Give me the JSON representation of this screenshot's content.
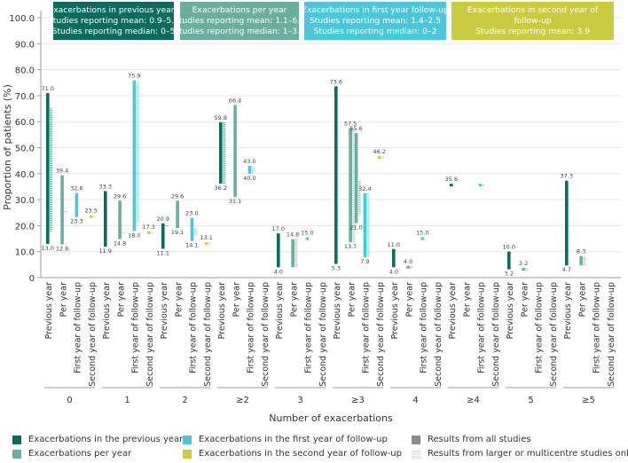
{
  "chart_data": {
    "type": "range",
    "ylabel": "Proportion of patients (%)",
    "xlabel": "Number of exacerbations",
    "ylim": [
      0,
      100
    ],
    "yticks": [
      "0",
      "10.0",
      "20.0",
      "30.0",
      "40.0",
      "50.0",
      "60.0",
      "70.0",
      "80.0",
      "90.0",
      "100.0"
    ],
    "periods": [
      "Previous year",
      "Per year",
      "First year of follow-up",
      "Second year of follow-up"
    ],
    "period_colors": [
      "#0b6b5c",
      "#6aaf9c",
      "#4cc6d8",
      "#c9cc40"
    ],
    "groups": [
      {
        "label": "0",
        "ranges": [
          {
            "period": 0,
            "min": 13.0,
            "max": 71.0,
            "min_label": "13.0",
            "max_label": "71.0",
            "large_from": 17.8,
            "large_to": 65.1
          },
          {
            "period": 1,
            "min": 12.8,
            "max": 39.4,
            "min_label": "12.8",
            "max_label": "39.4",
            "large_from": 25.3,
            "large_to": 25.3
          },
          {
            "period": 2,
            "min": 23.3,
            "max": 32.6,
            "min_label": "23.3",
            "max_label": "32.6",
            "large_from": null,
            "large_to": null
          },
          {
            "period": 3,
            "min": 23.5,
            "max": 23.5,
            "min_label": "",
            "max_label": "23.5",
            "large_from": 23.5,
            "large_to": 23.5
          }
        ]
      },
      {
        "label": "1",
        "ranges": [
          {
            "period": 0,
            "min": 11.9,
            "max": 33.3,
            "min_label": "11.9",
            "max_label": "33.3",
            "large_from": null,
            "large_to": null
          },
          {
            "period": 1,
            "min": 14.8,
            "max": 29.6,
            "min_label": "14.8",
            "max_label": "29.6",
            "large_from": 17.4,
            "large_to": 17.4
          },
          {
            "period": 2,
            "min": 18.0,
            "max": 75.9,
            "min_label": "18.0",
            "max_label": "75.9",
            "large_from": 20.9,
            "large_to": 75.9
          },
          {
            "period": 3,
            "min": 17.3,
            "max": 17.3,
            "min_label": "",
            "max_label": "17.3",
            "large_from": 17.3,
            "large_to": 17.3
          }
        ]
      },
      {
        "label": "2",
        "ranges": [
          {
            "period": 0,
            "min": 11.1,
            "max": 20.9,
            "min_label": "11.1",
            "max_label": "20.9",
            "large_from": 20.0,
            "large_to": 20.0
          },
          {
            "period": 1,
            "min": 19.1,
            "max": 29.6,
            "min_label": "19.1",
            "max_label": "29.6",
            "large_from": null,
            "large_to": null
          },
          {
            "period": 2,
            "min": 14.1,
            "max": 23.0,
            "min_label": "14.1",
            "max_label": "23.0",
            "large_from": 19.1,
            "large_to": 16.0
          },
          {
            "period": 3,
            "min": 13.1,
            "max": 13.1,
            "min_label": "",
            "max_label": "13.1",
            "large_from": 13.1,
            "large_to": 13.1
          }
        ]
      },
      {
        "label": "≥2",
        "ranges": [
          {
            "period": 0,
            "min": 36.2,
            "max": 59.8,
            "min_label": "36.2",
            "max_label": "59.8",
            "large_from": 36.2,
            "large_to": 59.8
          },
          {
            "period": 1,
            "min": 31.1,
            "max": 66.4,
            "min_label": "31.1",
            "max_label": "66.4",
            "large_from": null,
            "large_to": null
          },
          {
            "period": 2,
            "min": 40.0,
            "max": 43.0,
            "min_label": "40.0",
            "max_label": "43.0",
            "large_from": 40.0,
            "large_to": 43.0
          },
          {
            "period": 3,
            "min": null,
            "max": null,
            "min_label": "",
            "max_label": "",
            "large_from": null,
            "large_to": null
          }
        ]
      },
      {
        "label": "3",
        "ranges": [
          {
            "period": 0,
            "min": 4.0,
            "max": 17.0,
            "min_label": "4.0",
            "max_label": "17.0",
            "large_from": null,
            "large_to": null
          },
          {
            "period": 1,
            "min": 4.0,
            "max": 14.8,
            "min_label": "",
            "max_label": "14.8",
            "large_from": 4.0,
            "large_to": 14.8
          },
          {
            "period": 2,
            "min": 15.0,
            "max": 15.0,
            "min_label": "",
            "max_label": "15.0",
            "large_from": null,
            "large_to": null
          },
          {
            "period": 3,
            "min": null,
            "max": null,
            "min_label": "",
            "max_label": "",
            "large_from": null,
            "large_to": null
          }
        ]
      },
      {
        "label": "≥3",
        "ranges": [
          {
            "period": 0,
            "min": 5.3,
            "max": 73.6,
            "min_label": "5.3",
            "max_label": "73.6",
            "large_from": null,
            "large_to": null
          },
          {
            "period": 1,
            "min": 13.7,
            "max": 57.5,
            "min_label": "13.7",
            "max_label": "57.5",
            "large_from": 13.7,
            "large_to": 57.5
          },
          {
            "period": 1,
            "min": 21.0,
            "max": 55.6,
            "min_label": "21.0",
            "max_label": "55.6",
            "large_from": 24.1,
            "large_to": 37.2
          },
          {
            "period": 2,
            "min": 7.9,
            "max": 32.4,
            "min_label": "7.9",
            "max_label": "32.4",
            "large_from": 7.9,
            "large_to": 32.4
          },
          {
            "period": 3,
            "min": 46.2,
            "max": 46.2,
            "min_label": "",
            "max_label": "46.2",
            "large_from": 46.2,
            "large_to": 46.2
          }
        ]
      },
      {
        "label": "4",
        "ranges": [
          {
            "period": 0,
            "min": 4.0,
            "max": 11.0,
            "min_label": "4.0",
            "max_label": "11.0",
            "large_from": null,
            "large_to": null
          },
          {
            "period": 1,
            "min": 4.0,
            "max": 4.0,
            "min_label": "",
            "max_label": "4.0",
            "large_from": 4.0,
            "large_to": 4.0
          },
          {
            "period": 2,
            "min": 15.0,
            "max": 15.0,
            "min_label": "",
            "max_label": "15.0",
            "large_from": null,
            "large_to": null
          },
          {
            "period": 3,
            "min": null,
            "max": null,
            "min_label": "",
            "max_label": "",
            "large_from": null,
            "large_to": null
          }
        ]
      },
      {
        "label": "≥4",
        "ranges": [
          {
            "period": 0,
            "min": 35.6,
            "max": 35.6,
            "min_label": "",
            "max_label": "35.6",
            "large_from": null,
            "large_to": null
          },
          {
            "period": 2,
            "min": 35.6,
            "max": 35.6,
            "min_label": "",
            "max_label": "",
            "large_from": 35.6,
            "large_to": 35.6
          }
        ]
      },
      {
        "label": "5",
        "ranges": [
          {
            "period": 0,
            "min": 3.2,
            "max": 10.0,
            "min_label": "3.2",
            "max_label": "10.0",
            "large_from": null,
            "large_to": null
          },
          {
            "period": 1,
            "min": 3.2,
            "max": 3.2,
            "min_label": "",
            "max_label": "3.2",
            "large_from": 3.2,
            "large_to": 3.2
          }
        ]
      },
      {
        "label": "≥5",
        "ranges": [
          {
            "period": 0,
            "min": 4.7,
            "max": 37.3,
            "min_label": "4.7",
            "max_label": "37.3",
            "large_from": null,
            "large_to": null
          },
          {
            "period": 1,
            "min": 4.7,
            "max": 8.3,
            "min_label": "",
            "max_label": "8.3",
            "large_from": 4.7,
            "large_to": 8.3
          }
        ]
      }
    ],
    "header_boxes": [
      {
        "lines": [
          "Exacerbations in previous year",
          "Studies reporting mean: 0.9–5.0",
          "Studies reporting median: 0–5"
        ],
        "superscript": "#",
        "color": "#0b6b5c"
      },
      {
        "lines": [
          "Exacerbations per year",
          "Studies reporting mean: 1.1–6.9",
          "Studies reporting median: 1–3.9"
        ],
        "superscript": "",
        "color": "#6aaf9c"
      },
      {
        "lines": [
          "Exacerbations  in first year follow-up",
          "Studies reporting mean: 1.4–2.5",
          "Studies reporting median: 0–2"
        ],
        "superscript": "",
        "color": "#4cc6d8"
      },
      {
        "lines": [
          "Exacerbations  in second year of",
          "follow-up",
          "Studies reporting mean: 3.9"
        ],
        "superscript": "",
        "color": "#c9cc40"
      }
    ]
  },
  "legend": {
    "items": [
      {
        "label": "Exacerbations in the previous year",
        "color": "#0b6b5c"
      },
      {
        "label": "Exacerbations per year",
        "color": "#6aaf9c"
      },
      {
        "label": "Exacerbations in the first year of follow-up",
        "color": "#4cc6d8"
      },
      {
        "label": "Exacerbations in the second year of follow-up",
        "color": "#c9cc40"
      },
      {
        "label": "Results from all studies",
        "color": "#8c8c8c"
      },
      {
        "label": "Results from larger or multicentre studies only",
        "color": "#d9d9d9"
      }
    ]
  }
}
